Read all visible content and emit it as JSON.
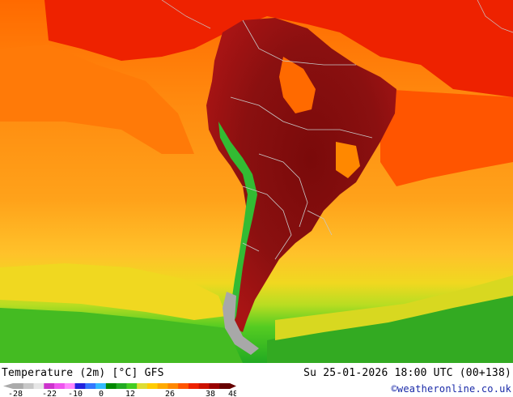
{
  "title": "Temperature (2m) [°C] GFS",
  "valid_time": "Su 25-01-2026 18:00 UTC (00+138)",
  "credit": "©weatheronline.co.uk",
  "legend": {
    "ticks": [
      "-28",
      "-22",
      "-10",
      "0",
      "12",
      "26",
      "38",
      "48"
    ],
    "colors": [
      "#aaaaaa",
      "#c8c8c8",
      "#e6e6e6",
      "#cc33cc",
      "#ee55ee",
      "#ff88ff",
      "#2222dd",
      "#3377ff",
      "#33bbff",
      "#008800",
      "#22aa22",
      "#44cc22",
      "#dddd33",
      "#ffcc00",
      "#ffaa00",
      "#ff8800",
      "#ff5500",
      "#ee2200",
      "#cc1100",
      "#990000",
      "#660000"
    ]
  },
  "colors": {
    "ocean_warm": "#ff6a00",
    "ocean_mid": "#ff8c10",
    "ocean_cool": "#ffb020",
    "yellow": "#f0d820",
    "green_light": "#66cc22",
    "green": "#22aa22",
    "land_hot": "#8a0f0f",
    "land_very_hot": "#6a0808",
    "red_band": "#ee2200",
    "andes_green": "#33bb33",
    "ice": "#a0a0a0",
    "borders": "#c8c8c8"
  }
}
